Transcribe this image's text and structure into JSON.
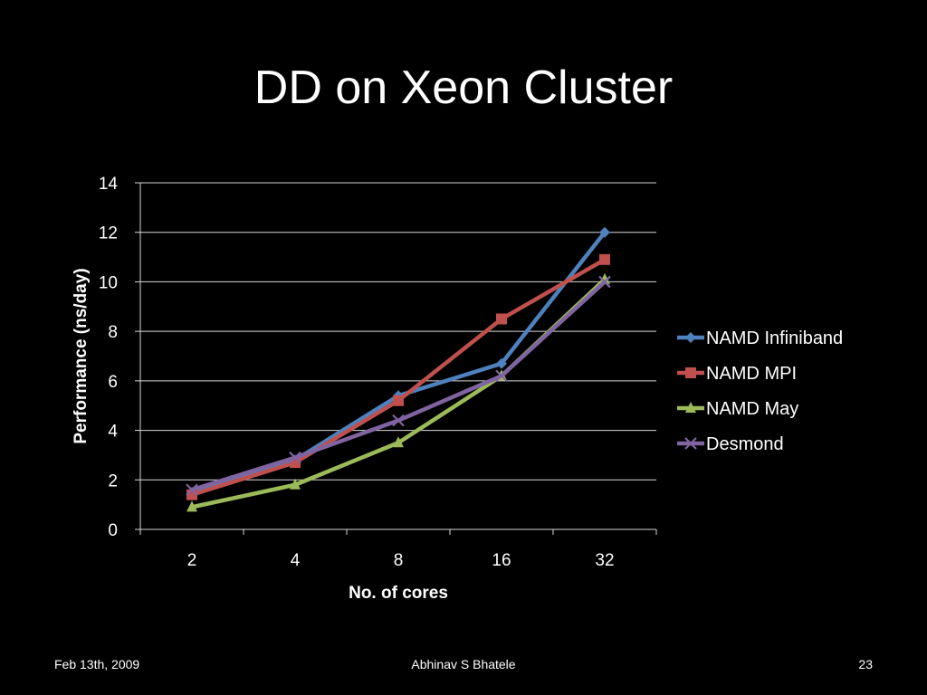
{
  "slide": {
    "title": "DD on Xeon Cluster"
  },
  "footer": {
    "date": "Feb 13th, 2009",
    "author": "Abhinav S Bhatele",
    "page_number": "23"
  },
  "chart_data": {
    "type": "line",
    "categories": [
      "2",
      "4",
      "8",
      "16",
      "32"
    ],
    "xlabel": "No. of cores",
    "ylabel": "Performance (ns/day)",
    "ylim": [
      0,
      14
    ],
    "yticks": [
      0,
      2,
      4,
      6,
      8,
      10,
      12,
      14
    ],
    "grid": true,
    "legend_position": "right",
    "series": [
      {
        "name": "NAMD Infiniband",
        "values": [
          1.5,
          2.8,
          5.4,
          6.7,
          12.0
        ],
        "color": "#4F81BD",
        "marker": "diamond"
      },
      {
        "name": "NAMD MPI",
        "values": [
          1.4,
          2.7,
          5.2,
          8.5,
          10.9
        ],
        "color": "#C0504D",
        "marker": "square"
      },
      {
        "name": "NAMD May",
        "values": [
          0.9,
          1.8,
          3.5,
          6.2,
          10.1
        ],
        "color": "#9BBB59",
        "marker": "triangle"
      },
      {
        "name": "Desmond",
        "values": [
          1.6,
          2.9,
          4.4,
          6.2,
          10.0
        ],
        "color": "#8064A2",
        "marker": "x"
      }
    ]
  }
}
